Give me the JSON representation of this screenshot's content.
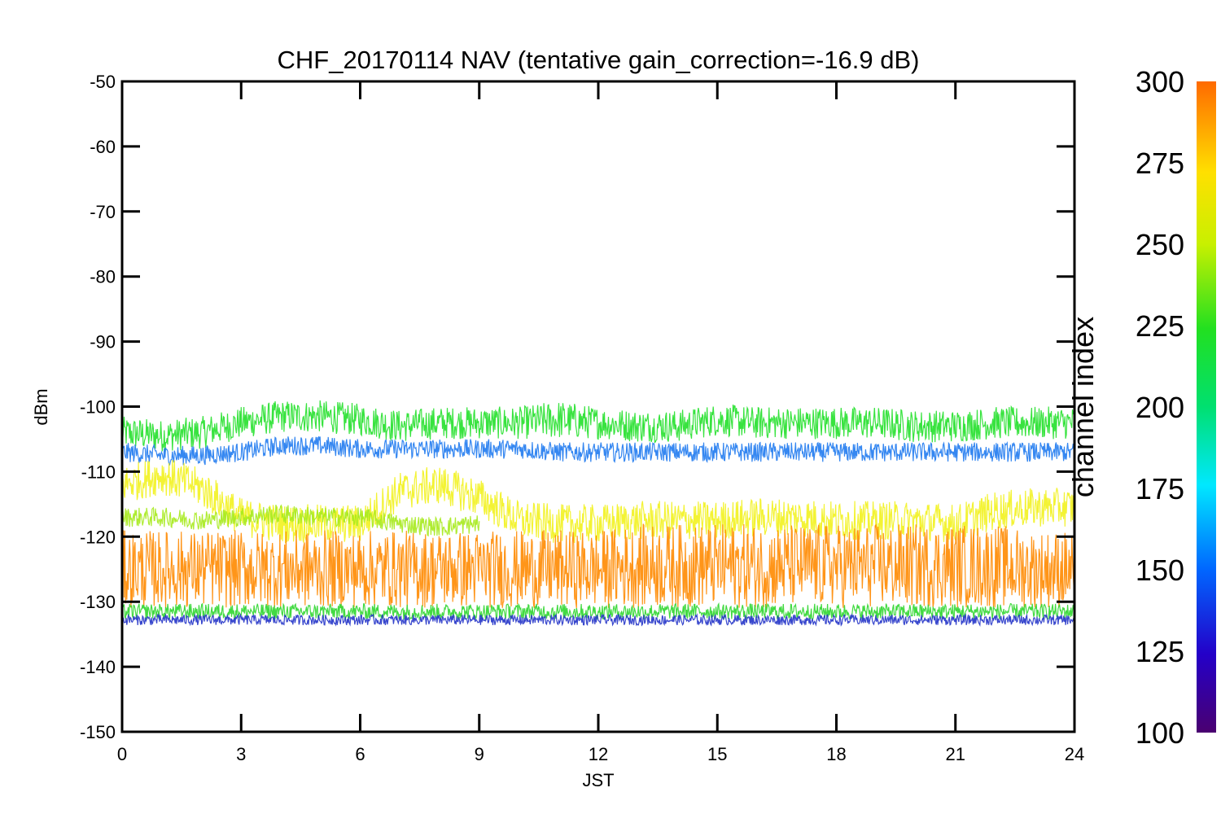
{
  "chart_data": {
    "type": "line",
    "title": "CHF_20170114 NAV (tentative gain_correction=-16.9 dB)",
    "xlabel": "JST",
    "ylabel": "dBm",
    "xlim": [
      0,
      24
    ],
    "ylim": [
      -150,
      -50
    ],
    "xticks": [
      "0",
      "3",
      "6",
      "9",
      "12",
      "15",
      "18",
      "21",
      "24"
    ],
    "yticks": [
      "-50",
      "-60",
      "-70",
      "-80",
      "-90",
      "-100",
      "-110",
      "-120",
      "-130",
      "-140",
      "-150"
    ],
    "grid": false,
    "colorbar": {
      "label": "channel index",
      "range": [
        100,
        300
      ],
      "ticks": [
        "300",
        "275",
        "250",
        "225",
        "200",
        "175",
        "150",
        "125",
        "100"
      ],
      "colormap": "rainbow"
    },
    "series": [
      {
        "channel": 230,
        "color": "#22e02a",
        "x": [
          0,
          1,
          2,
          3,
          4,
          5,
          6,
          7,
          8,
          9,
          10,
          11,
          12,
          13,
          14,
          15,
          16,
          17,
          18,
          19,
          20,
          21,
          22,
          23,
          24
        ],
        "mean": [
          -104,
          -104.5,
          -104,
          -102.5,
          -101.5,
          -101.5,
          -102,
          -103,
          -102.5,
          -102.5,
          -102.5,
          -102,
          -102.5,
          -103,
          -103,
          -102,
          -102.5,
          -102.5,
          -102.5,
          -102.5,
          -103,
          -103,
          -102.5,
          -102.5,
          -102.5
        ],
        "spread": [
          2.5,
          2.5,
          2.5,
          2.5,
          2.5,
          2.5,
          2.5,
          2.5,
          2.5,
          2.5,
          2.5,
          3,
          2.5,
          2.5,
          2.5,
          2.5,
          2.5,
          2.5,
          2.5,
          2.5,
          2.5,
          2.5,
          2.5,
          2.5,
          2.5
        ]
      },
      {
        "channel": 155,
        "color": "#1f7af0",
        "x": [
          0,
          1,
          2,
          3,
          4,
          5,
          6,
          7,
          8,
          9,
          10,
          11,
          12,
          13,
          14,
          15,
          16,
          17,
          18,
          19,
          20,
          21,
          22,
          23,
          24
        ],
        "mean": [
          -107,
          -107.5,
          -107.5,
          -107,
          -106,
          -106,
          -106.5,
          -106.5,
          -106.5,
          -106.5,
          -106.5,
          -107,
          -107,
          -107,
          -107,
          -107,
          -107,
          -107,
          -107,
          -107,
          -107,
          -107,
          -107,
          -107,
          -107
        ],
        "spread": [
          1.5,
          1.5,
          1.5,
          1.5,
          1.5,
          1.5,
          1.5,
          1.5,
          1.5,
          1.5,
          1.5,
          1.5,
          1.5,
          1.5,
          1.5,
          1.5,
          1.5,
          1.5,
          1.5,
          1.5,
          1.5,
          1.5,
          1.5,
          1.5,
          1.5
        ]
      },
      {
        "channel": 270,
        "color": "#f2f21e",
        "x": [
          0,
          1,
          2,
          3,
          4,
          5,
          6,
          7,
          8,
          9,
          10,
          11,
          12,
          13,
          14,
          15,
          16,
          17,
          18,
          19,
          20,
          21,
          22,
          23,
          24
        ],
        "mean": [
          -112,
          -110.5,
          -112.5,
          -117,
          -118,
          -118,
          -118,
          -113,
          -112,
          -114,
          -117.5,
          -118,
          -118,
          -117.5,
          -117.5,
          -117.5,
          -117,
          -117,
          -117.5,
          -117.5,
          -117.5,
          -118,
          -116,
          -115.5,
          -115.5
        ],
        "spread": [
          3,
          3,
          3,
          3,
          3,
          3,
          3,
          3,
          3,
          3,
          3,
          3,
          3,
          3,
          3,
          3,
          3,
          3,
          3,
          3,
          3,
          3,
          3,
          3,
          3
        ]
      },
      {
        "channel": 260,
        "color": "#a6ea1c",
        "x": [
          0,
          1,
          2,
          3,
          4,
          5,
          6,
          7,
          8,
          9
        ],
        "mean": [
          -117,
          -117,
          -117.5,
          -117,
          -116.5,
          -117,
          -117,
          -118,
          -118.5,
          -118
        ],
        "spread": [
          1.5,
          1.5,
          1.5,
          1.5,
          1.5,
          1.5,
          1.5,
          1.5,
          1.5,
          1.5
        ]
      },
      {
        "channel": 285,
        "color": "#ff8a00",
        "x": [
          0,
          1,
          2,
          3,
          4,
          5,
          6,
          7,
          8,
          9,
          10,
          11,
          12,
          13,
          14,
          15,
          16,
          17,
          18,
          19,
          20,
          21,
          22,
          23,
          24
        ],
        "mean": [
          -125,
          -125,
          -125,
          -125,
          -125,
          -125,
          -125,
          -125,
          -125,
          -125,
          -125,
          -125,
          -125,
          -124.5,
          -124.5,
          -124.5,
          -124.5,
          -124.5,
          -124.5,
          -124.5,
          -124.5,
          -124.5,
          -124.5,
          -125,
          -125
        ],
        "spread": [
          6,
          6,
          6,
          6,
          6,
          6,
          6,
          6,
          6,
          6,
          6,
          6,
          6,
          6.5,
          6.5,
          6.5,
          6.5,
          6.5,
          6.5,
          6.5,
          6.5,
          6.5,
          6.5,
          6,
          6
        ]
      },
      {
        "channel": 240,
        "color": "#2ed62e",
        "x": [
          0,
          1,
          2,
          3,
          4,
          5,
          6,
          7,
          8,
          9,
          10,
          11,
          12,
          13,
          14,
          15,
          16,
          17,
          18,
          19,
          20,
          21,
          22,
          23,
          24
        ],
        "mean": [
          -131.5,
          -131.5,
          -131.5,
          -131.5,
          -131.5,
          -131.5,
          -131.5,
          -131.5,
          -131.5,
          -131.5,
          -131.5,
          -131.5,
          -131.5,
          -131.5,
          -131.5,
          -131.5,
          -131.5,
          -131.5,
          -131.5,
          -131.5,
          -131.5,
          -131.5,
          -131.5,
          -131.5,
          -131.5
        ],
        "spread": [
          1.2,
          1.2,
          1.2,
          1.2,
          1.2,
          1.2,
          1.2,
          1.2,
          1.2,
          1.2,
          1.2,
          1.2,
          1.2,
          1.2,
          1.2,
          1.2,
          1.2,
          1.2,
          1.2,
          1.2,
          1.2,
          1.2,
          1.2,
          1.2,
          1.2
        ]
      },
      {
        "channel": 140,
        "color": "#2233c8",
        "x": [
          0,
          1,
          2,
          3,
          4,
          5,
          6,
          7,
          8,
          9,
          10,
          11,
          12,
          13,
          14,
          15,
          16,
          17,
          18,
          19,
          20,
          21,
          22,
          23,
          24
        ],
        "mean": [
          -132.8,
          -132.8,
          -132.8,
          -132.8,
          -132.8,
          -132.8,
          -132.8,
          -132.8,
          -132.8,
          -132.8,
          -132.8,
          -132.8,
          -132.8,
          -132.8,
          -132.8,
          -132.8,
          -132.8,
          -132.8,
          -132.8,
          -132.8,
          -132.8,
          -132.8,
          -132.8,
          -132.8,
          -132.8
        ],
        "spread": [
          0.8,
          0.8,
          0.8,
          0.8,
          0.8,
          0.8,
          0.8,
          0.8,
          0.8,
          0.8,
          0.8,
          0.8,
          0.8,
          0.8,
          0.8,
          0.8,
          0.8,
          0.8,
          0.8,
          0.8,
          0.8,
          0.8,
          0.8,
          0.8,
          0.8
        ]
      }
    ]
  }
}
